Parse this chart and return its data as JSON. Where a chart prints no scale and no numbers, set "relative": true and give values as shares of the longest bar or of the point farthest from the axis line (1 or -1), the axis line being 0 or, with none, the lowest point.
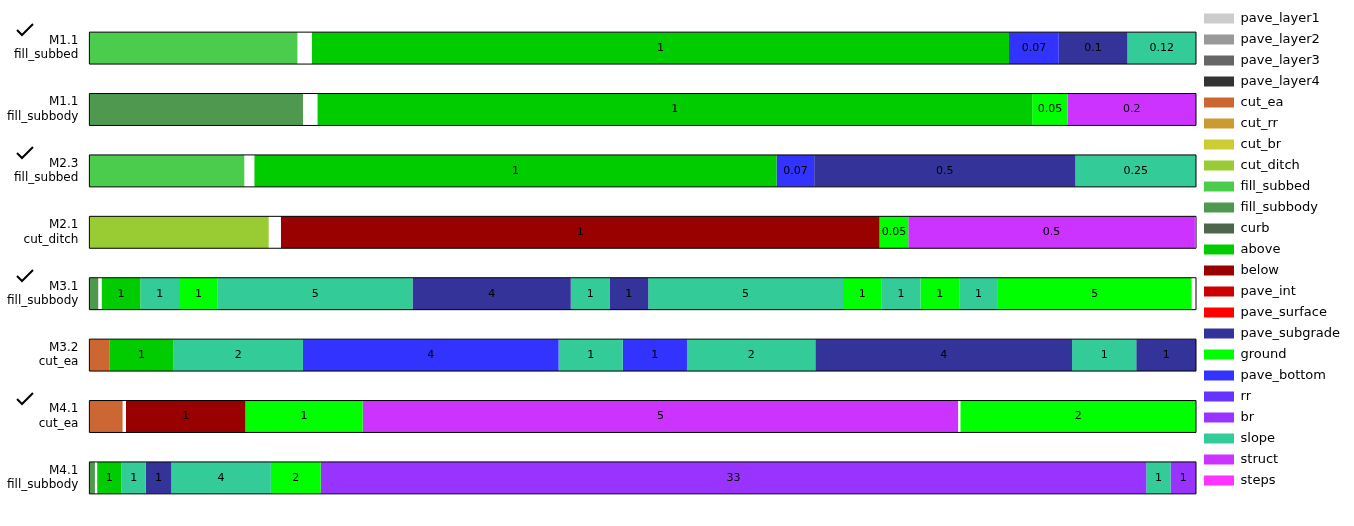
{
  "chart_data": {
    "type": "bar",
    "orientation": "horizontal",
    "stacked": true,
    "relative": true,
    "legend": "right",
    "annotations": [
      "1",
      "0.07",
      "0.1",
      "0.12",
      "1",
      "0.05",
      "0.2",
      "1",
      "0.07",
      "0.5",
      "0.25",
      "1",
      "0.05",
      "0.5",
      "1",
      "1",
      "1",
      "5",
      "4",
      "1",
      "1",
      "5",
      "1",
      "1",
      "1",
      "1",
      "5",
      "1",
      "2",
      "4",
      "1",
      "1",
      "2",
      "4",
      "1",
      "1",
      "1",
      "1",
      "5",
      "2",
      "1",
      "1",
      "1",
      "4",
      "2",
      "33",
      "1",
      "1"
    ],
    "categories": [
      "M1.1\nfill_subbed",
      "M1.1\nfill_subbody",
      "M2.3\nfill_subbed",
      "M2.1\ncut_ditch",
      "M3.1\nfill_subbody",
      "M3.2\ncut_ea",
      "M4.1\ncut_ea",
      "M4.1\nfill_subbody"
    ],
    "series": [
      {
        "values": [
          0.188,
          0.193,
          0.14,
          0.162,
          0.008,
          0.018,
          0.03,
          0.005
        ],
        "colors": [
          "#4ccc4c",
          "#4e994e",
          "#4ccc4c",
          "#99cc33",
          "#4e994e",
          "#cc6633",
          "#cc6633",
          "#4e994e"
        ]
      },
      {
        "values": [
          0.013,
          0.013,
          0.009,
          0.011,
          0.003,
          0.058,
          0.003,
          0.002
        ],
        "colors": [
          "#ffffff",
          "#ffffff",
          "#ffffff",
          "#ffffff",
          "#ffffff",
          "#00cc00",
          "#ffffff",
          "#ffffff"
        ]
      },
      {
        "values": [
          0.63,
          0.646,
          0.472,
          0.541,
          0.035,
          0.117,
          0.108,
          0.022
        ],
        "colors": [
          "#00cc00",
          "#00cc00",
          "#00cc00",
          "#990000",
          "#00cc00",
          "#33cc99",
          "#990000",
          "#00cc00"
        ]
      },
      {
        "values": [
          0.045,
          0.032,
          0.034,
          0.026,
          0.035,
          0.231,
          0.106,
          0.022
        ],
        "colors": [
          "#3333ff",
          "#00ff00",
          "#3333ff",
          "#00ff00",
          "#33cc99",
          "#3333ff",
          "#00ff00",
          "#33cc99"
        ]
      },
      {
        "values": [
          0.062,
          0.116,
          0.236,
          0.259,
          0.035,
          0.058,
          0.538,
          0.023
        ],
        "colors": [
          "#333399",
          "#cc33ff",
          "#333399",
          "#cc33ff",
          "#00ff00",
          "#33cc99",
          "#cc33ff",
          "#333399"
        ]
      },
      {
        "values": [
          0.062,
          null,
          0.109,
          null,
          0.176,
          0.058,
          0.002,
          0.09
        ],
        "colors": [
          "#33cc99",
          null,
          "#33cc99",
          null,
          "#33cc99",
          "#3333ff",
          "#ffffff",
          "#33cc99"
        ]
      },
      {
        "values": [
          null,
          null,
          null,
          null,
          0.143,
          0.116,
          0.213,
          0.045
        ],
        "colors": [
          null,
          null,
          null,
          null,
          "#333399",
          "#33cc99",
          "#00ff00",
          "#00ff00"
        ]
      },
      {
        "values": [
          null,
          null,
          null,
          null,
          0.035,
          0.232,
          null,
          0.746
        ],
        "colors": [
          null,
          null,
          null,
          null,
          "#33cc99",
          "#333399",
          null,
          "#9933ff"
        ]
      },
      {
        "values": [
          null,
          null,
          null,
          null,
          0.035,
          0.058,
          null,
          0.022
        ],
        "colors": [
          null,
          null,
          null,
          null,
          "#333399",
          "#33cc99",
          null,
          "#33cc99"
        ]
      },
      {
        "values": [
          null,
          null,
          null,
          null,
          0.176,
          0.054,
          null,
          0.023
        ],
        "colors": [
          null,
          null,
          null,
          null,
          "#33cc99",
          "#333399",
          null,
          "#9933ff"
        ]
      },
      {
        "values": [
          null,
          null,
          null,
          null,
          0.035,
          null,
          null,
          null
        ],
        "colors": [
          null,
          null,
          null,
          null,
          "#00ff00",
          null,
          null,
          null
        ]
      },
      {
        "values": [
          null,
          null,
          null,
          null,
          0.035,
          null,
          null,
          null
        ],
        "colors": [
          null,
          null,
          null,
          null,
          "#33cc99",
          null,
          null,
          null
        ]
      },
      {
        "values": [
          null,
          null,
          null,
          null,
          0.035,
          null,
          null,
          null
        ],
        "colors": [
          null,
          null,
          null,
          null,
          "#00ff00",
          null,
          null,
          null
        ]
      },
      {
        "values": [
          null,
          null,
          null,
          null,
          0.035,
          null,
          null,
          null
        ],
        "colors": [
          null,
          null,
          null,
          null,
          "#33cc99",
          null,
          null,
          null
        ]
      },
      {
        "values": [
          null,
          null,
          null,
          null,
          0.175,
          null,
          null,
          null
        ],
        "colors": [
          null,
          null,
          null,
          null,
          "#00ff00",
          null,
          null,
          null
        ]
      },
      {
        "name": "pave_layer1",
        "color": "#cccccc",
        "values": [
          null,
          null,
          null,
          null,
          null,
          null,
          null,
          null
        ]
      },
      {
        "name": "pave_layer2",
        "color": "#999999",
        "values": [
          null,
          null,
          null,
          null,
          null,
          null,
          null,
          null
        ]
      },
      {
        "name": "pave_layer3",
        "color": "#666666",
        "values": [
          null,
          null,
          null,
          null,
          null,
          null,
          null,
          null
        ]
      },
      {
        "name": "pave_layer4",
        "color": "#333333",
        "values": [
          null,
          null,
          null,
          null,
          null,
          null,
          null,
          null
        ]
      },
      {
        "name": "cut_ea",
        "color": "#cc6633",
        "values": [
          null,
          null,
          null,
          null,
          null,
          null,
          null,
          null
        ]
      },
      {
        "name": "cut_rr",
        "color": "#cc9933",
        "values": [
          null,
          null,
          null,
          null,
          null,
          null,
          null,
          null
        ]
      },
      {
        "name": "cut_br",
        "color": "#cccc33",
        "values": [
          null,
          null,
          null,
          null,
          null,
          null,
          null,
          null
        ]
      },
      {
        "name": "cut_ditch",
        "color": "#99cc33",
        "values": [
          null,
          null,
          null,
          null,
          null,
          null,
          null,
          null
        ]
      },
      {
        "name": "fill_subbed",
        "color": "#4ccc4c",
        "values": [
          null,
          null,
          null,
          null,
          null,
          null,
          null,
          null
        ]
      },
      {
        "name": "fill_subbody",
        "color": "#4e994e",
        "values": [
          null,
          null,
          null,
          null,
          null,
          null,
          null,
          null
        ]
      },
      {
        "name": "curb",
        "color": "#4d664d",
        "values": [
          null,
          null,
          null,
          null,
          null,
          null,
          null,
          null
        ]
      },
      {
        "name": "above",
        "color": "#00cc00",
        "values": [
          null,
          null,
          null,
          null,
          null,
          null,
          null,
          null
        ]
      },
      {
        "name": "below",
        "color": "#990000",
        "values": [
          null,
          null,
          null,
          null,
          null,
          null,
          null,
          null
        ]
      },
      {
        "name": "pave_int",
        "color": "#cc0000",
        "values": [
          null,
          null,
          null,
          null,
          null,
          null,
          null,
          null
        ]
      },
      {
        "name": "pave_surface",
        "color": "#ff0000",
        "values": [
          null,
          null,
          null,
          null,
          null,
          null,
          null,
          null
        ]
      },
      {
        "name": "pave_subgrade",
        "color": "#333399",
        "values": [
          null,
          null,
          null,
          null,
          null,
          null,
          null,
          null
        ]
      },
      {
        "name": "ground",
        "color": "#00ff00",
        "values": [
          null,
          null,
          null,
          null,
          null,
          null,
          null,
          null
        ]
      },
      {
        "name": "pave_bottom",
        "color": "#3333ff",
        "values": [
          null,
          null,
          null,
          null,
          null,
          null,
          null,
          null
        ]
      },
      {
        "name": "rr",
        "color": "#6633ff",
        "values": [
          null,
          null,
          null,
          null,
          null,
          null,
          null,
          null
        ]
      },
      {
        "name": "br",
        "color": "#9933ff",
        "values": [
          null,
          null,
          null,
          null,
          null,
          null,
          null,
          null
        ]
      },
      {
        "name": "slope",
        "color": "#33cc99",
        "values": [
          null,
          null,
          null,
          null,
          null,
          null,
          null,
          null
        ]
      },
      {
        "name": "struct",
        "color": "#cc33ff",
        "values": [
          null,
          null,
          null,
          null,
          null,
          null,
          null,
          null
        ]
      },
      {
        "name": "steps",
        "color": "#ff33ff",
        "values": [
          null,
          null,
          null,
          null,
          null,
          null,
          null,
          null
        ]
      }
    ]
  }
}
